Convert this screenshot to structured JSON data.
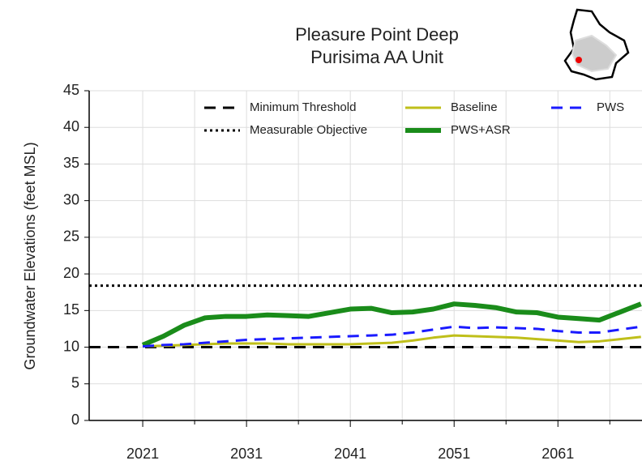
{
  "chart_data": {
    "type": "line",
    "title": [
      "Pleasure Point Deep",
      "Purisima AA Unit"
    ],
    "y_label": "Groundwater Elevations (feet MSL)",
    "x": [
      2021,
      2023,
      2025,
      2027,
      2029,
      2031,
      2033,
      2035,
      2037,
      2039,
      2041,
      2043,
      2045,
      2047,
      2049,
      2051,
      2053,
      2055,
      2057,
      2059,
      2061,
      2063,
      2065,
      2067,
      2069
    ],
    "reference_lines": [
      {
        "name": "Minimum Threshold",
        "value": 10,
        "color": "#000000",
        "style": "dashed"
      },
      {
        "name": "Measurable Objective",
        "value": 18.4,
        "color": "#000000",
        "style": "dotted"
      }
    ],
    "series": [
      {
        "name": "Baseline",
        "color": "#bfbf1a",
        "style": "solid",
        "width": 3,
        "values": [
          10.1,
          10.2,
          10.3,
          10.4,
          10.5,
          10.5,
          10.5,
          10.4,
          10.4,
          10.4,
          10.4,
          10.5,
          10.6,
          10.9,
          11.3,
          11.6,
          11.5,
          11.4,
          11.3,
          11.1,
          10.9,
          10.7,
          10.8,
          11.1,
          11.4
        ]
      },
      {
        "name": "PWS+ASR",
        "color": "#1a8c1a",
        "style": "solid",
        "width": 6,
        "values": [
          10.3,
          11.5,
          13.0,
          14.0,
          14.2,
          14.2,
          14.4,
          14.3,
          14.2,
          14.7,
          15.2,
          15.3,
          14.7,
          14.8,
          15.2,
          15.9,
          15.7,
          15.4,
          14.8,
          14.7,
          14.1,
          13.9,
          13.7,
          14.8,
          15.9
        ]
      },
      {
        "name": "PWS",
        "color": "#1a1aff",
        "style": "dashed",
        "width": 3,
        "values": [
          10.1,
          10.3,
          10.4,
          10.6,
          10.8,
          11.0,
          11.1,
          11.2,
          11.3,
          11.4,
          11.5,
          11.6,
          11.7,
          12.0,
          12.4,
          12.8,
          12.6,
          12.7,
          12.6,
          12.5,
          12.2,
          12.0,
          12.0,
          12.4,
          12.8
        ]
      }
    ],
    "xlim": [
      2015.84,
      2069.1
    ],
    "ylim": [
      0,
      45
    ],
    "xticks": [
      2021,
      2031,
      2041,
      2051,
      2061
    ],
    "xminorticks": [
      2026,
      2036,
      2046,
      2056,
      2066
    ],
    "yticks": [
      0,
      5,
      10,
      15,
      20,
      25,
      30,
      35,
      40,
      45
    ],
    "grid": true
  }
}
